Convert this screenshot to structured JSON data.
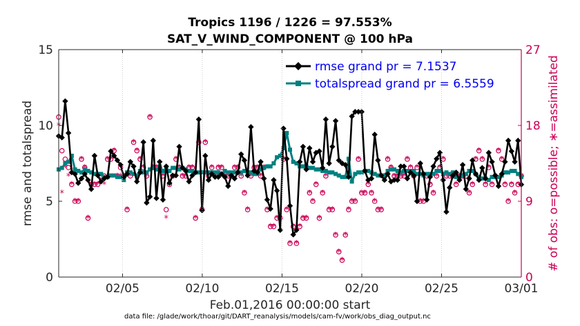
{
  "chart_data": {
    "type": "line",
    "title": "Tropics 1196 / 1226 = 97.553%",
    "subtitle": "SAT_V_WIND_COMPONENT @ 100 hPa",
    "xlabel": "Feb.01,2016 00:00:00 start",
    "ylabel": "rmse and totalspread",
    "y2label": "# of obs: o=possible; ∗=assimilated",
    "footnote": "data file: /glade/work/thoar/git/DART_reanalysis/models/cam-fv/work/obs_diag_output.nc",
    "xlim": [
      1,
      30
    ],
    "ylim": [
      0,
      15
    ],
    "y2lim": [
      0,
      27
    ],
    "xticks": [
      5,
      10,
      15,
      20,
      25,
      30
    ],
    "xtick_labels": [
      "02/05",
      "02/10",
      "02/15",
      "02/20",
      "02/25",
      "03/01"
    ],
    "yticks": [
      0,
      5,
      10,
      15
    ],
    "ytick_labels": [
      "0",
      "5",
      "10",
      "15"
    ],
    "y2ticks": [
      0,
      9,
      18,
      27
    ],
    "y2tick_labels": [
      "0",
      "9",
      "18",
      "27"
    ],
    "legend_position": "top-right",
    "series": [
      {
        "name": "rmse grand pr = 7.1537",
        "color": "#000000",
        "marker": "diamond",
        "values": [
          9.3,
          9.2,
          11.6,
          9.5,
          6.9,
          6.8,
          6.2,
          6.5,
          6.8,
          6.4,
          5.8,
          8.0,
          6.7,
          6.3,
          6.5,
          6.6,
          8.3,
          8.0,
          7.7,
          7.4,
          6.6,
          6.8,
          7.6,
          7.3,
          6.3,
          6.9,
          8.9,
          4.9,
          5.3,
          9.0,
          5.2,
          7.6,
          5.1,
          7.3,
          6.2,
          6.7,
          6.7,
          8.6,
          7.2,
          7.0,
          6.3,
          6.7,
          6.9,
          10.4,
          4.4,
          8.0,
          6.4,
          6.8,
          6.6,
          6.6,
          6.8,
          6.6,
          6.0,
          6.7,
          6.5,
          6.9,
          8.1,
          7.7,
          6.7,
          9.9,
          7.0,
          6.9,
          7.6,
          6.5,
          5.1,
          4.5,
          6.4,
          5.7,
          3.1,
          9.8,
          7.8,
          4.7,
          2.8,
          3.1,
          7.6,
          8.6,
          7.1,
          8.5,
          7.6,
          8.2,
          8.3,
          7.2,
          10.4,
          7.5,
          8.6,
          10.3,
          7.7,
          7.5,
          7.4,
          6.6,
          10.6,
          10.9,
          10.9,
          10.9,
          7.0,
          6.4,
          6.5,
          9.4,
          7.7,
          6.7,
          6.4,
          6.8,
          6.3,
          6.4,
          6.4,
          7.3,
          7.3,
          6.5,
          6.9,
          6.7,
          5.0,
          7.5,
          6.8,
          5.1,
          6.6,
          7.3,
          7.8,
          8.2,
          6.4,
          4.3,
          5.9,
          6.7,
          6.9,
          6.4,
          7.4,
          5.8,
          6.5,
          7.7,
          6.8,
          6.4,
          7.2,
          6.5,
          8.2,
          7.6,
          6.7,
          6.0,
          6.8,
          7.6,
          9.0,
          8.3,
          7.6,
          9.0,
          6.1
        ]
      },
      {
        "name": "totalspread grand pr = 6.5559",
        "color": "#008080",
        "marker": "square",
        "values": [
          7.1,
          7.2,
          7.5,
          7.6,
          8.0,
          7.1,
          7.0,
          6.9,
          7.1,
          7.0,
          6.9,
          6.8,
          6.8,
          6.8,
          6.6,
          6.6,
          6.7,
          6.7,
          6.6,
          6.6,
          6.4,
          6.9,
          6.9,
          6.8,
          6.7,
          7.0,
          6.9,
          6.9,
          7.1,
          7.2,
          7.1,
          7.3,
          7.0,
          7.1,
          7.0,
          7.2,
          7.2,
          7.1,
          7.2,
          7.1,
          7.0,
          7.0,
          6.9,
          6.9,
          6.9,
          6.9,
          6.9,
          6.9,
          6.9,
          6.9,
          6.8,
          7.0,
          6.9,
          6.9,
          6.9,
          6.9,
          6.9,
          7.0,
          6.9,
          6.9,
          6.8,
          6.8,
          7.1,
          7.2,
          7.3,
          7.3,
          7.5,
          7.9,
          8.0,
          8.5,
          9.5,
          8.4,
          7.6,
          7.5,
          7.3,
          7.3,
          7.3,
          7.2,
          7.2,
          7.1,
          7.1,
          7.0,
          7.0,
          6.9,
          6.9,
          6.8,
          6.7,
          6.6,
          6.6,
          7.8,
          6.3,
          6.8,
          6.9,
          6.9,
          7.0,
          7.0,
          6.9,
          6.8,
          6.7,
          6.7,
          6.7,
          7.0,
          7.1,
          7.1,
          7.0,
          6.9,
          7.0,
          7.0,
          7.0,
          7.0,
          6.8,
          6.8,
          6.7,
          6.8,
          6.8,
          6.8,
          7.0,
          7.0,
          6.8,
          6.9,
          6.8,
          6.9,
          6.6,
          6.6,
          6.7,
          6.8,
          7.0,
          7.0,
          6.8,
          6.6,
          6.5,
          6.5,
          6.4,
          6.6,
          6.6,
          6.6,
          6.7,
          6.9,
          6.9,
          7.0,
          7.0,
          6.8,
          6.6
        ]
      },
      {
        "name": "possible",
        "color": "#cc0055",
        "marker": "circle",
        "axis": "right",
        "values": [
          19,
          15,
          14,
          13,
          11,
          9,
          9,
          14,
          13,
          7,
          11,
          11,
          11,
          12,
          12,
          14,
          14,
          15,
          12,
          13,
          12,
          8,
          12,
          16,
          15,
          14,
          13,
          12,
          19,
          13,
          13,
          13,
          12,
          8,
          11,
          12,
          14,
          13,
          12,
          12,
          13,
          13,
          7,
          16,
          8,
          16,
          12,
          13,
          12,
          13,
          13,
          12,
          12,
          12,
          13,
          13,
          12,
          10,
          8,
          12,
          13,
          13,
          12,
          13,
          8,
          6,
          6,
          7,
          7,
          14,
          8,
          4,
          6,
          4,
          6,
          7,
          7,
          10,
          9,
          11,
          7,
          10,
          12,
          8,
          8,
          5,
          3,
          2,
          5,
          8,
          9,
          9,
          14,
          10,
          10,
          11,
          10,
          9,
          8,
          8,
          12,
          14,
          13,
          12,
          12,
          12,
          12,
          14,
          13,
          12,
          13,
          9,
          9,
          12,
          11,
          10,
          12,
          13,
          14,
          12,
          12,
          12,
          11,
          12,
          12,
          12,
          10,
          11,
          14,
          15,
          14,
          11,
          13,
          11,
          12,
          15,
          14,
          11,
          9,
          11,
          10,
          11,
          12
        ]
      },
      {
        "name": "assimilated",
        "color": "#cc0055",
        "marker": "asterisk",
        "axis": "right",
        "values": [
          18,
          10,
          13,
          12,
          11,
          9,
          9,
          14,
          13,
          7,
          11,
          11,
          11,
          12,
          11,
          14,
          14,
          15,
          12,
          12,
          12,
          8,
          12,
          16,
          15,
          14,
          13,
          12,
          19,
          13,
          13,
          13,
          12,
          7,
          11,
          12,
          14,
          13,
          12,
          12,
          13,
          13,
          7,
          16,
          8,
          16,
          12,
          13,
          12,
          13,
          13,
          12,
          12,
          12,
          13,
          13,
          12,
          10,
          8,
          12,
          13,
          13,
          12,
          13,
          8,
          6,
          6,
          7,
          7,
          14,
          8,
          4,
          6,
          4,
          6,
          7,
          7,
          10,
          9,
          11,
          7,
          10,
          12,
          8,
          8,
          5,
          3,
          2,
          5,
          8,
          9,
          9,
          14,
          10,
          10,
          11,
          10,
          9,
          8,
          8,
          12,
          14,
          13,
          12,
          12,
          12,
          12,
          14,
          13,
          12,
          13,
          9,
          9,
          12,
          11,
          10,
          12,
          13,
          14,
          12,
          12,
          12,
          11,
          12,
          12,
          12,
          10,
          11,
          14,
          15,
          14,
          11,
          13,
          11,
          12,
          15,
          14,
          11,
          9,
          11,
          10,
          11,
          12
        ]
      }
    ]
  }
}
